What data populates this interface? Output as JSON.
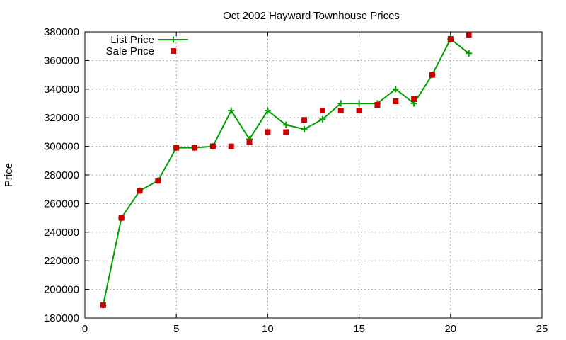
{
  "chart_data": {
    "type": "line",
    "title": "Oct 2002 Hayward Townhouse Prices",
    "xlabel": "",
    "ylabel": "Price",
    "xlim": [
      0,
      25
    ],
    "ylim": [
      180000,
      380000
    ],
    "xticks": [
      0,
      5,
      10,
      15,
      20,
      25
    ],
    "yticks": [
      180000,
      200000,
      220000,
      240000,
      260000,
      280000,
      300000,
      320000,
      340000,
      360000,
      380000
    ],
    "grid": true,
    "legend_position": "top-left",
    "series": [
      {
        "name": "List Price",
        "style": "line-with-plus-markers",
        "color": "#00a000",
        "x": [
          1,
          2,
          3,
          4,
          5,
          6,
          7,
          8,
          9,
          10,
          11,
          12,
          13,
          14,
          15,
          16,
          17,
          18,
          19,
          20,
          21
        ],
        "y": [
          189000,
          250000,
          269000,
          276000,
          299000,
          299000,
          300000,
          325000,
          305000,
          325000,
          315000,
          312000,
          319000,
          330000,
          330000,
          330000,
          340000,
          330000,
          350000,
          375000,
          365000
        ]
      },
      {
        "name": "Sale Price",
        "style": "square-markers",
        "color": "#c80000",
        "x": [
          1,
          2,
          3,
          4,
          5,
          6,
          7,
          8,
          9,
          10,
          11,
          12,
          13,
          14,
          15,
          16,
          17,
          18,
          19,
          20,
          21
        ],
        "y": [
          189000,
          250000,
          269000,
          276000,
          299000,
          299000,
          300000,
          300000,
          303000,
          310000,
          310000,
          318500,
          325000,
          325000,
          325000,
          329000,
          331500,
          333000,
          350000,
          375000,
          378000
        ]
      }
    ]
  }
}
